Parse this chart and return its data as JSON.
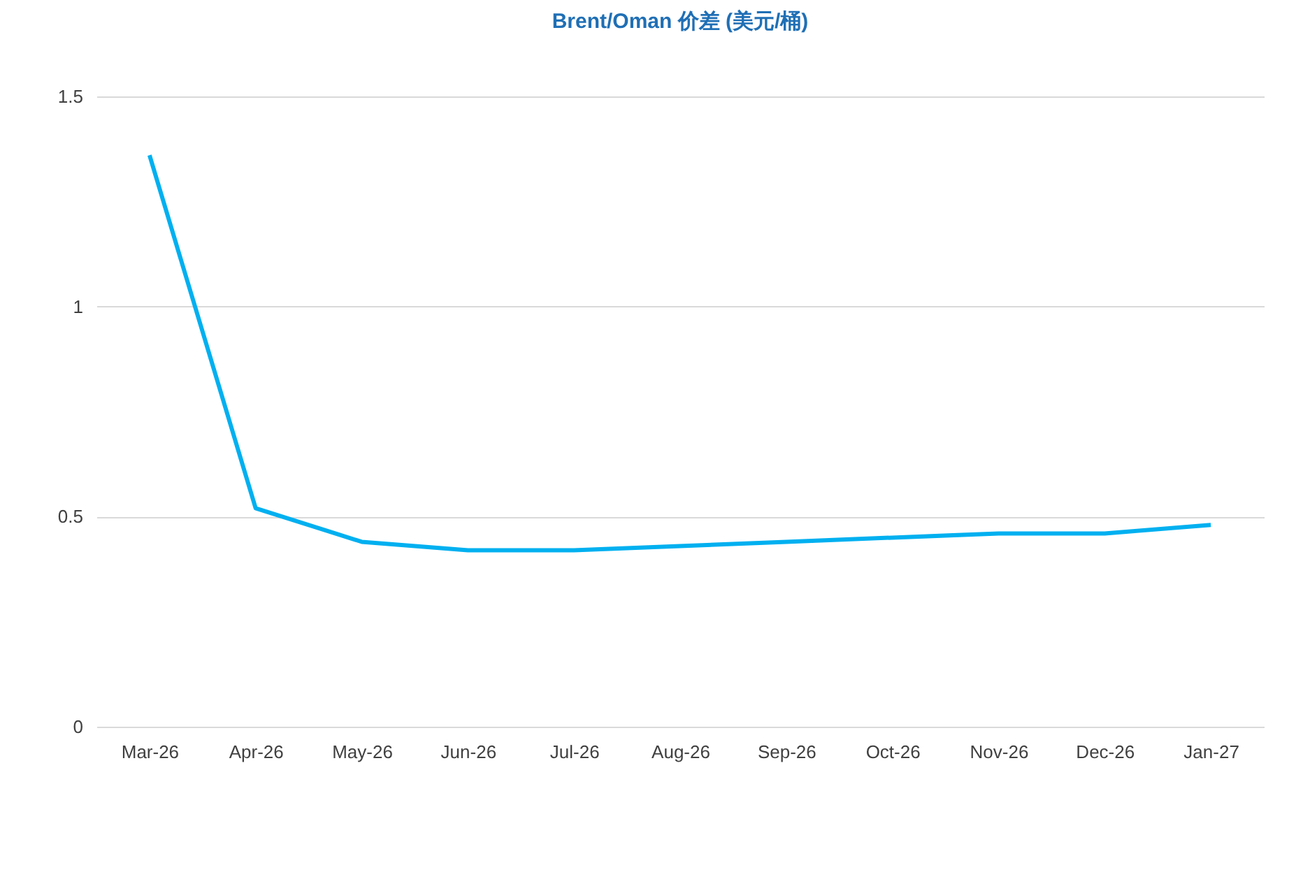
{
  "chart_data": {
    "type": "line",
    "title": "Brent/Oman 价差 (美元/桶)",
    "categories": [
      "Mar-26",
      "Apr-26",
      "May-26",
      "Jun-26",
      "Jul-26",
      "Aug-26",
      "Sep-26",
      "Oct-26",
      "Nov-26",
      "Dec-26",
      "Jan-27"
    ],
    "series": [
      {
        "color": "#00b0f0",
        "values": [
          1.36,
          0.52,
          0.44,
          0.42,
          0.42,
          0.43,
          0.44,
          0.45,
          0.46,
          0.46,
          0.48
        ]
      }
    ],
    "ylim": [
      0,
      1.5
    ],
    "yticks": [
      0,
      0.5,
      1,
      1.5
    ],
    "grid": "y",
    "line_style": "solid",
    "marker": "none"
  }
}
